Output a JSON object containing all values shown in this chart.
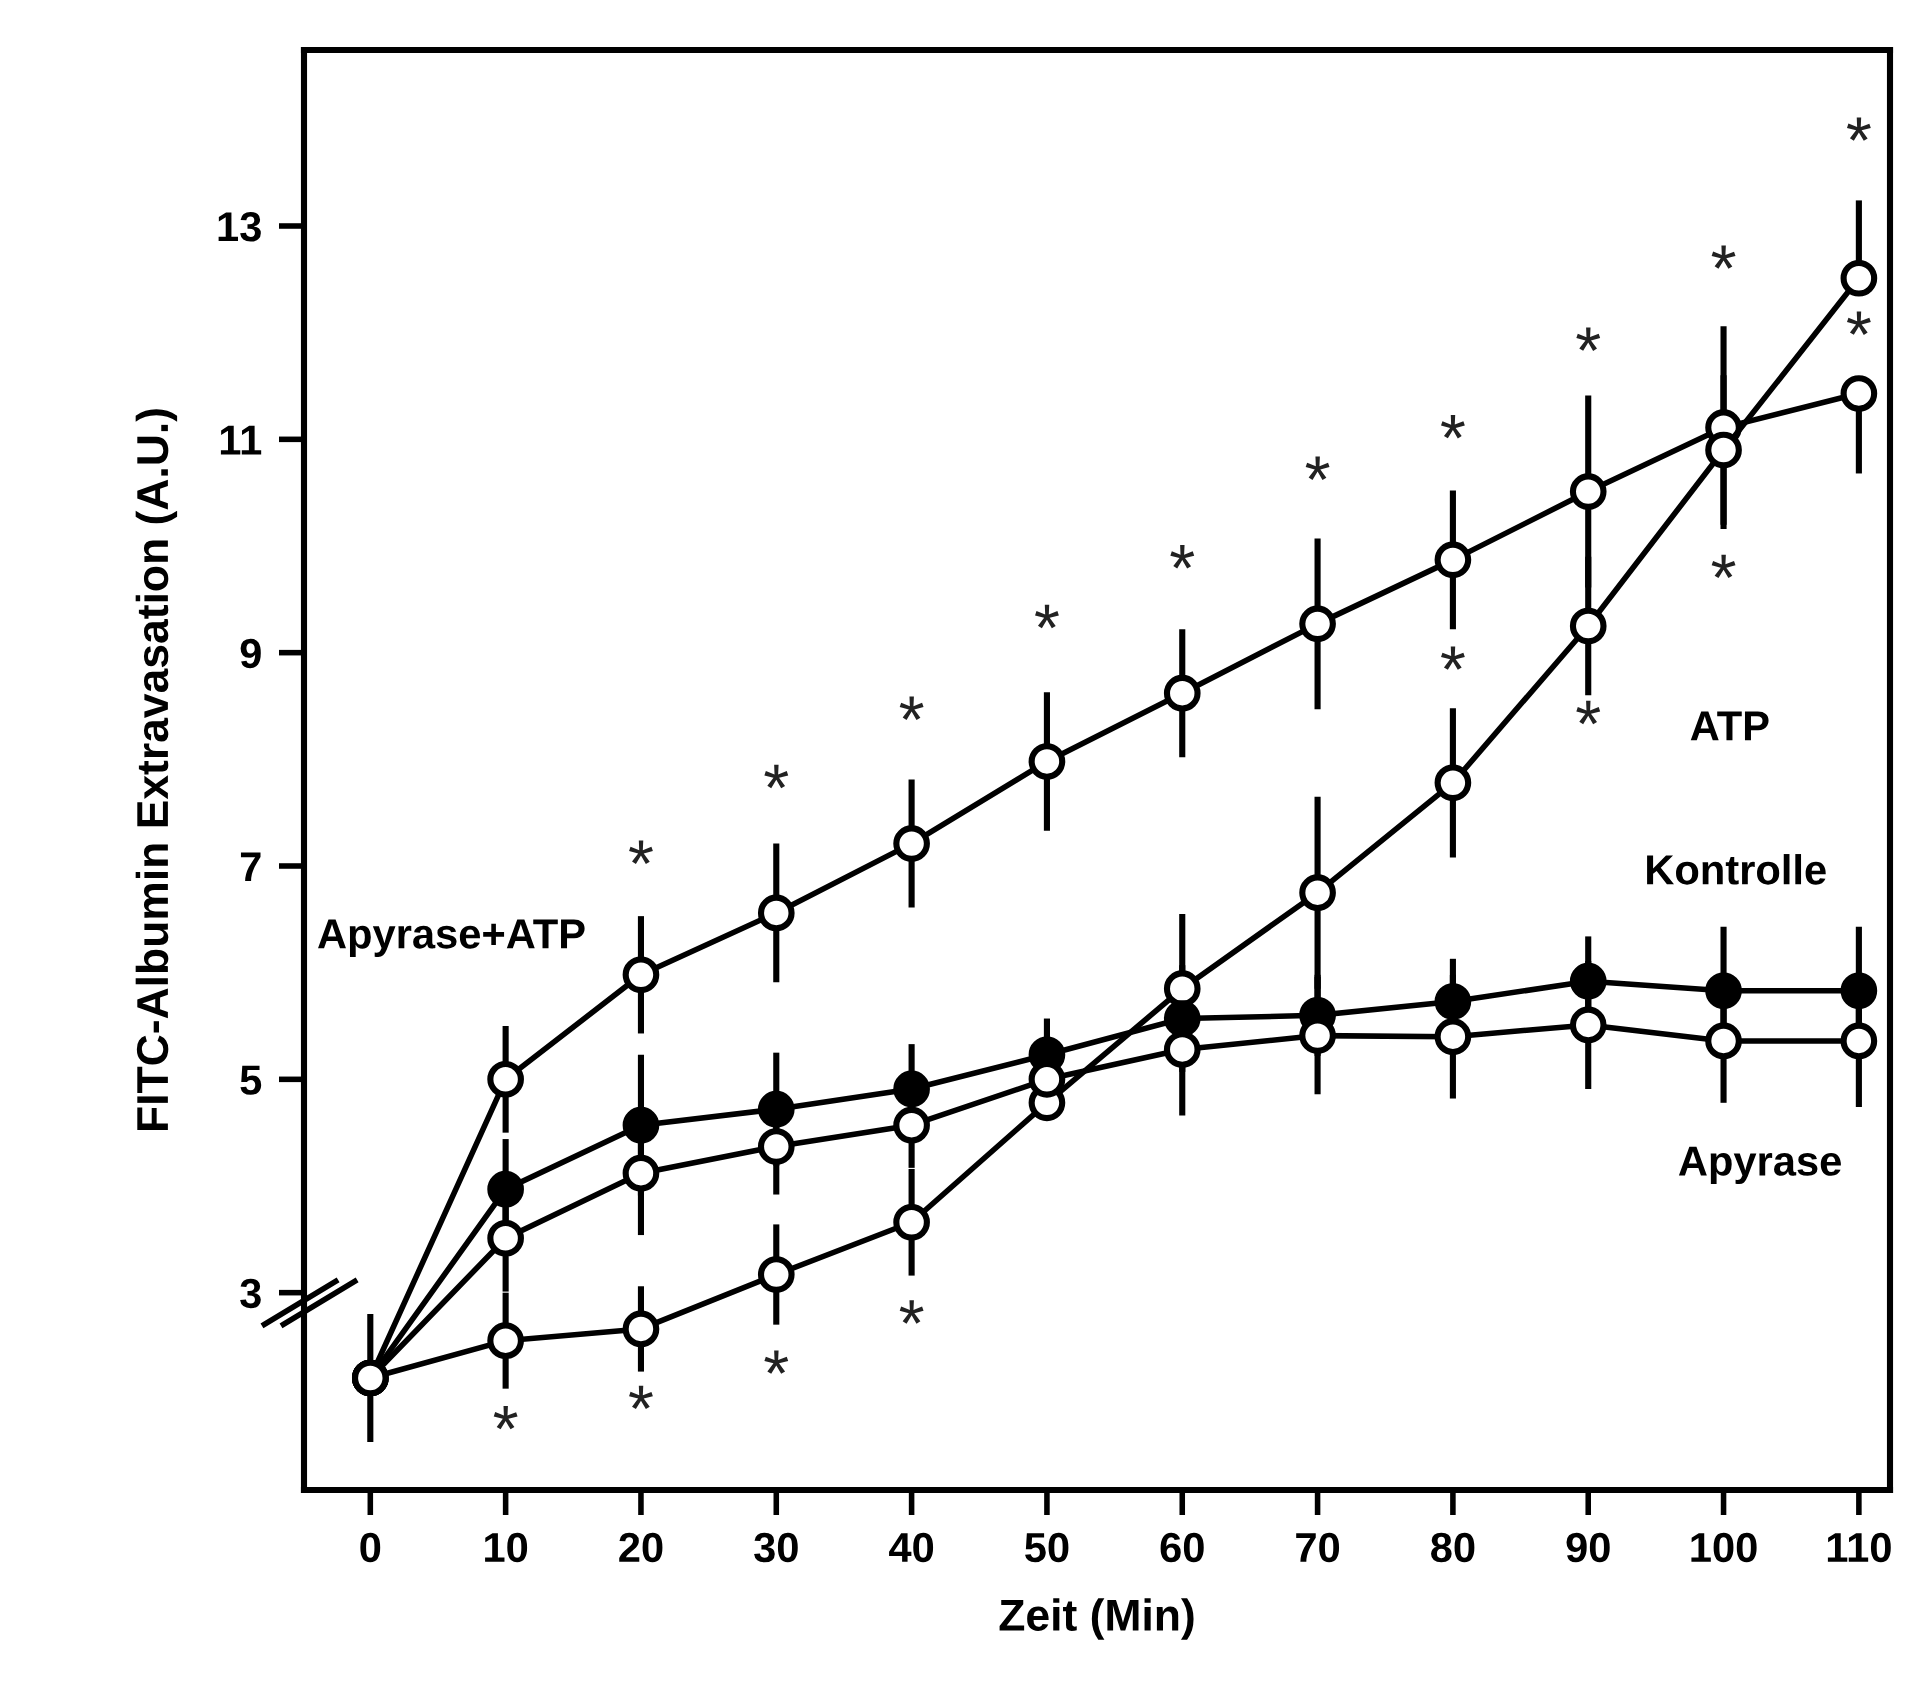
{
  "chart_data": {
    "type": "line",
    "xlabel": "Zeit (Min)",
    "ylabel": "FITC-Albumin Extravasation (A.U.)",
    "x": [
      0,
      10,
      20,
      30,
      40,
      50,
      60,
      70,
      80,
      90,
      100,
      110
    ],
    "xlim": [
      -4.9,
      112.3
    ],
    "xticks": [
      0,
      10,
      20,
      30,
      40,
      50,
      60,
      70,
      80,
      90,
      100,
      110
    ],
    "ylim": [
      1.15,
      14.65
    ],
    "yticks": [
      3,
      5,
      7,
      9,
      11,
      13
    ],
    "marker": "circle",
    "line_style": "solid",
    "grid": false,
    "legend": false,
    "series": [
      {
        "name": "Apyrase+ATP",
        "color": "#000000",
        "values": [
          2.2,
          5.0,
          5.98,
          6.56,
          7.21,
          7.98,
          8.62,
          9.27,
          9.87,
          10.51,
          11.11,
          11.43
        ],
        "errors": [
          0.6,
          0.5,
          0.55,
          0.65,
          0.6,
          0.65,
          0.6,
          0.8,
          0.65,
          0.9,
          0.95,
          [
            10.68,
            11.43
          ]
        ]
      },
      {
        "name": "ATP",
        "color": "#000000",
        "values": [
          2.2,
          2.55,
          2.66,
          3.17,
          3.66,
          4.78,
          5.85,
          6.75,
          7.78,
          9.25,
          10.9,
          12.51
        ],
        "errors": [
          null,
          0.45,
          0.4,
          0.47,
          0.5,
          0.1,
          0.7,
          0.9,
          0.7,
          0.65,
          0.7,
          [
            12.51,
            13.24
          ]
        ]
      },
      {
        "name": "Kontrolle",
        "color": "#000000",
        "values": [
          2.2,
          3.97,
          4.57,
          4.72,
          4.91,
          5.23,
          5.57,
          5.6,
          5.73,
          5.92,
          5.83,
          5.83
        ],
        "errors": [
          null,
          0.47,
          0.66,
          0.53,
          0.42,
          0.34,
          0.5,
          0.38,
          0.4,
          0.42,
          0.6,
          0.6
        ]
      },
      {
        "name": "Apyrase",
        "color": "#000000",
        "values": [
          2.2,
          3.51,
          4.12,
          4.37,
          4.57,
          5.0,
          5.28,
          5.41,
          5.4,
          5.51,
          5.36,
          5.36
        ],
        "errors": [
          null,
          0.5,
          0.58,
          0.45,
          0.4,
          0.3,
          0.62,
          0.55,
          0.58,
          0.6,
          0.58,
          0.62
        ]
      }
    ],
    "annotations": [
      {
        "text": "*",
        "x": 20,
        "y": 5.98
      },
      {
        "text": "*",
        "x": 30,
        "y": 6.56
      },
      {
        "text": "*",
        "x": 40,
        "y": 7.21
      },
      {
        "text": "*",
        "x": 50,
        "y": 7.98
      },
      {
        "text": "*",
        "x": 60,
        "y": 8.62
      },
      {
        "text": "*",
        "x": 70,
        "y": 9.27
      },
      {
        "text": "*",
        "x": 80,
        "y": 9.87
      },
      {
        "text": "*",
        "x": 90,
        "y": 10.51
      },
      {
        "text": "*",
        "x": 100,
        "y": 11.11
      },
      {
        "text": "*",
        "x": 110,
        "y": 12.51
      },
      {
        "text": "*",
        "x": 110,
        "y": 11.43
      },
      {
        "text": "*",
        "x": 100,
        "y": 10.9
      },
      {
        "text": "*",
        "x": 90,
        "y": 9.25
      },
      {
        "text": "*",
        "x": 80,
        "y": 7.78
      },
      {
        "text": "*",
        "x": 10,
        "y": 2.55
      },
      {
        "text": "*",
        "x": 20,
        "y": 2.66
      },
      {
        "text": "*",
        "x": 30,
        "y": 3.17
      },
      {
        "text": "*",
        "x": 40,
        "y": 3.66
      }
    ]
  }
}
